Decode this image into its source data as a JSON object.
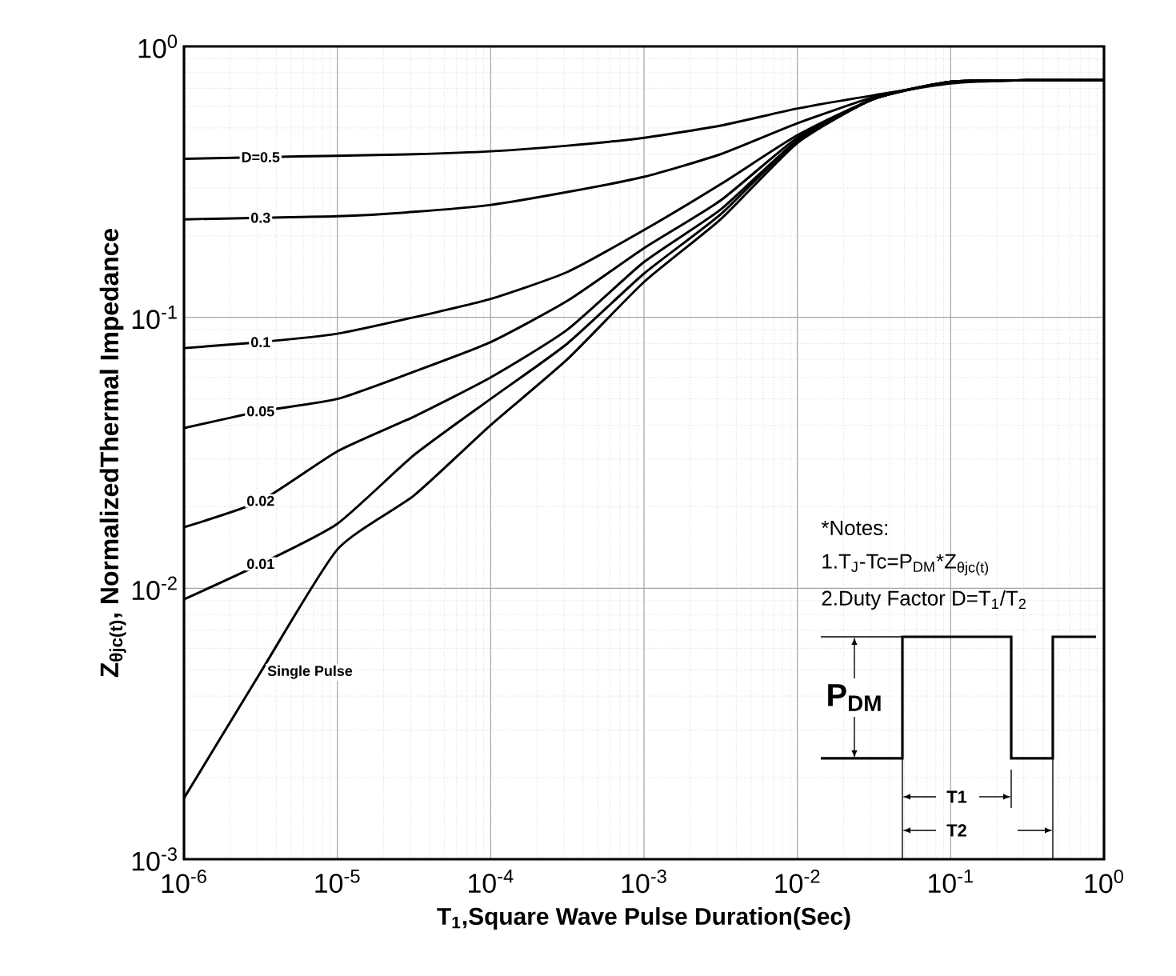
{
  "chart_data": {
    "type": "line",
    "xlabel": "T$_{1}$,Square Wave Pulse Duration(Sec)",
    "ylabel": "Z$_{θjc(t)}$, NormalizedThermal Impedance",
    "log": "xy",
    "grid": true,
    "marker": "none",
    "line_style": "solid",
    "xlim": [
      1e-06,
      1
    ],
    "ylim": [
      0.001,
      1
    ],
    "xticks": [
      {
        "value": 1e-06,
        "label": "10$^{-6}$"
      },
      {
        "value": 1e-05,
        "label": "10$^{-5}$"
      },
      {
        "value": 0.0001,
        "label": "10$^{-4}$"
      },
      {
        "value": 0.001,
        "label": "10$^{-3}$"
      },
      {
        "value": 0.01,
        "label": "10$^{-2}$"
      },
      {
        "value": 0.1,
        "label": "10$^{-1}$"
      },
      {
        "value": 1,
        "label": "10$^{0}$"
      }
    ],
    "yticks": [
      {
        "value": 0.001,
        "label": "10$^{-3}$"
      },
      {
        "value": 0.01,
        "label": "10$^{-2}$"
      },
      {
        "value": 0.1,
        "label": "10$^{-1}$"
      },
      {
        "value": 1,
        "label": "10$^{0}$"
      }
    ],
    "x": [
      1e-06,
      3.16e-06,
      1e-05,
      3.16e-05,
      0.0001,
      0.000316,
      0.001,
      0.00316,
      0.01,
      0.0316,
      0.1,
      0.316,
      1
    ],
    "series": [
      {
        "name": "D=0.5",
        "color": "#000000",
        "values": [
          0.385,
          0.39,
          0.395,
          0.4,
          0.41,
          0.43,
          0.46,
          0.51,
          0.59,
          0.66,
          0.73,
          0.75,
          0.75
        ]
      },
      {
        "name": "0.3",
        "color": "#000000",
        "values": [
          0.23,
          0.233,
          0.236,
          0.245,
          0.26,
          0.29,
          0.33,
          0.4,
          0.52,
          0.65,
          0.74,
          0.75,
          0.75
        ]
      },
      {
        "name": "0.1",
        "color": "#000000",
        "values": [
          0.077,
          0.081,
          0.087,
          0.1,
          0.117,
          0.147,
          0.21,
          0.31,
          0.47,
          0.64,
          0.74,
          0.75,
          0.75
        ]
      },
      {
        "name": "0.05",
        "color": "#000000",
        "values": [
          0.039,
          0.045,
          0.05,
          0.063,
          0.081,
          0.115,
          0.18,
          0.27,
          0.46,
          0.64,
          0.74,
          0.75,
          0.75
        ]
      },
      {
        "name": "0.02",
        "color": "#000000",
        "values": [
          0.0168,
          0.021,
          0.032,
          0.043,
          0.06,
          0.09,
          0.16,
          0.25,
          0.45,
          0.64,
          0.74,
          0.75,
          0.75
        ]
      },
      {
        "name": "0.01",
        "color": "#000000",
        "values": [
          0.0091,
          0.0123,
          0.0173,
          0.031,
          0.05,
          0.08,
          0.145,
          0.24,
          0.45,
          0.64,
          0.74,
          0.75,
          0.75
        ]
      },
      {
        "name": "Single Pulse",
        "color": "#000000",
        "values": [
          0.00168,
          0.0049,
          0.0139,
          0.022,
          0.04,
          0.07,
          0.135,
          0.23,
          0.44,
          0.64,
          0.74,
          0.75,
          0.75
        ]
      }
    ],
    "annotations": [
      "*Notes:",
      "1.T$_{J}$-Tc=P$_{DM}$*Z$_{θjc(t)}$",
      "2.Duty Factor D=T$_{1}$/T$_{2}$",
      "P$_{DM}$",
      "T1",
      "T2"
    ]
  }
}
